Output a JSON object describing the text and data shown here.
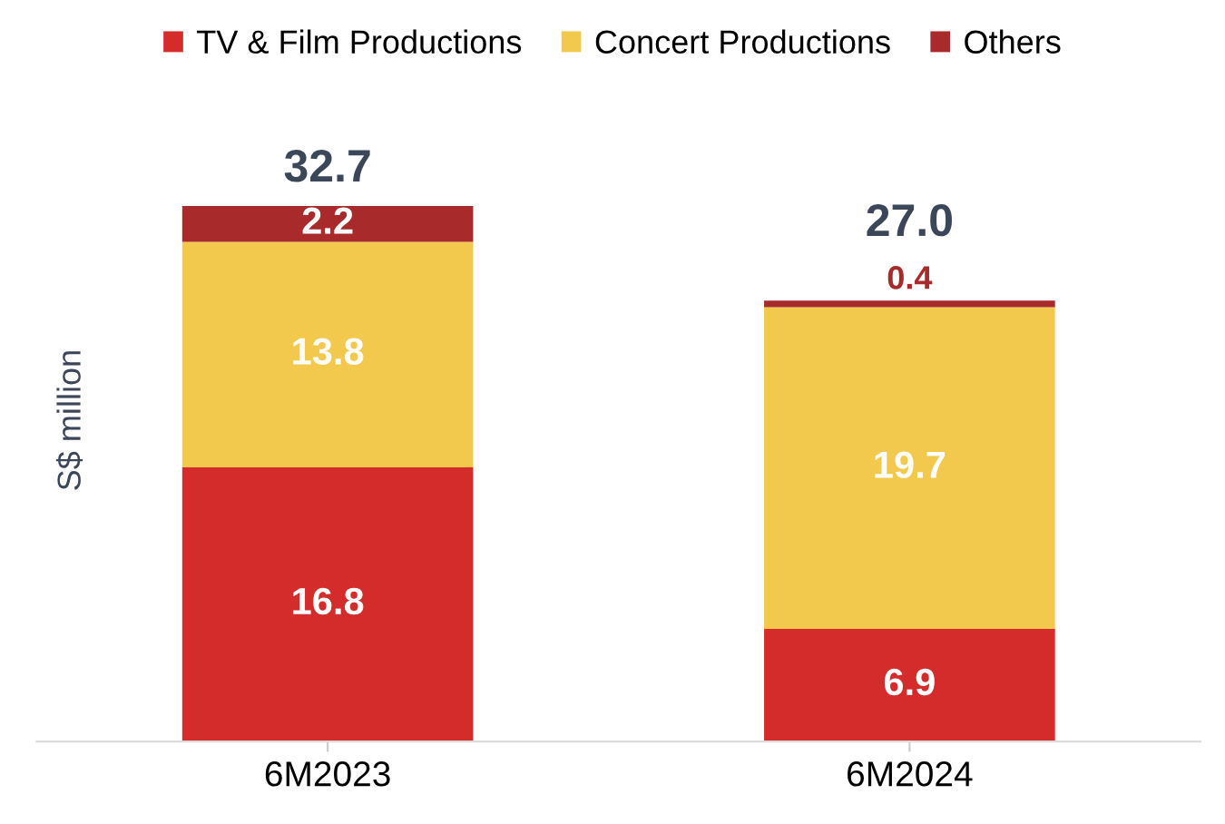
{
  "chart_data": {
    "type": "bar",
    "stacked": true,
    "ylabel": "S$ million",
    "categories": [
      "6M2023",
      "6M2024"
    ],
    "series": [
      {
        "name": "TV & Film Productions",
        "color": "#d42b2b",
        "values": [
          16.8,
          6.9
        ]
      },
      {
        "name": "Concert Productions",
        "color": "#f2c94c",
        "values": [
          13.8,
          19.7
        ]
      },
      {
        "name": "Others",
        "color": "#a82a2a",
        "values": [
          2.2,
          0.4
        ]
      }
    ],
    "data_labels": true,
    "totals": [
      "32.7",
      "27.0"
    ],
    "legend": "top",
    "tick_labels": "x"
  }
}
